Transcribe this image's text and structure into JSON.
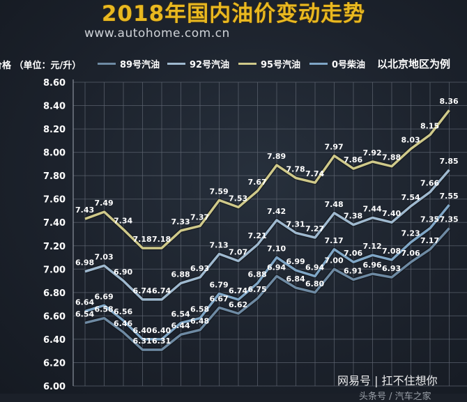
{
  "header": {
    "title": "2018年国内油价变动走势",
    "subtitle": "www.autohome.com.cn",
    "unit_label": "价格 （单位：元/升）",
    "note": "以北京地区为例"
  },
  "watermark": {
    "text": "网易号  |  扛不住想你",
    "partial": "头条号 / 汽车之家"
  },
  "chart_data": {
    "type": "line",
    "title": "2018年国内油价变动走势",
    "ylabel": "价格 （单位：元/升）",
    "xlabel": "",
    "ylim": [
      6.0,
      8.6
    ],
    "yticks": [
      "6.00",
      "6.20",
      "6.40",
      "6.60",
      "6.80",
      "7.00",
      "7.20",
      "7.40",
      "7.60",
      "7.80",
      "8.00",
      "8.20",
      "8.40",
      "8.60"
    ],
    "grid": true,
    "legend_position": "top",
    "series": [
      {
        "name": "89号汽油",
        "color": "#6e8aa3",
        "values": [
          6.54,
          6.58,
          6.46,
          6.31,
          6.31,
          6.44,
          6.48,
          6.67,
          6.62,
          6.75,
          6.94,
          6.84,
          6.8,
          7.0,
          6.91,
          6.96,
          6.93,
          7.06,
          7.17,
          7.35
        ]
      },
      {
        "name": "92号汽油",
        "color": "#9fb9cf",
        "values": [
          6.98,
          7.03,
          6.9,
          6.74,
          6.74,
          6.88,
          6.93,
          7.13,
          7.07,
          7.21,
          7.42,
          7.31,
          7.27,
          7.48,
          7.38,
          7.44,
          7.4,
          7.54,
          7.66,
          7.85
        ]
      },
      {
        "name": "95号汽油",
        "color": "#cfc98a",
        "values": [
          7.43,
          7.49,
          7.34,
          7.18,
          7.18,
          7.33,
          7.37,
          7.59,
          7.53,
          7.67,
          7.89,
          7.78,
          7.74,
          7.97,
          7.86,
          7.92,
          7.88,
          8.03,
          8.15,
          8.36
        ]
      },
      {
        "name": "0号柴油",
        "color": "#7fa6c6",
        "values": [
          6.64,
          6.69,
          6.56,
          6.4,
          6.4,
          6.54,
          6.58,
          6.79,
          6.74,
          6.88,
          7.1,
          6.99,
          6.94,
          7.17,
          7.06,
          7.12,
          7.08,
          7.23,
          7.35,
          7.55
        ]
      }
    ]
  }
}
